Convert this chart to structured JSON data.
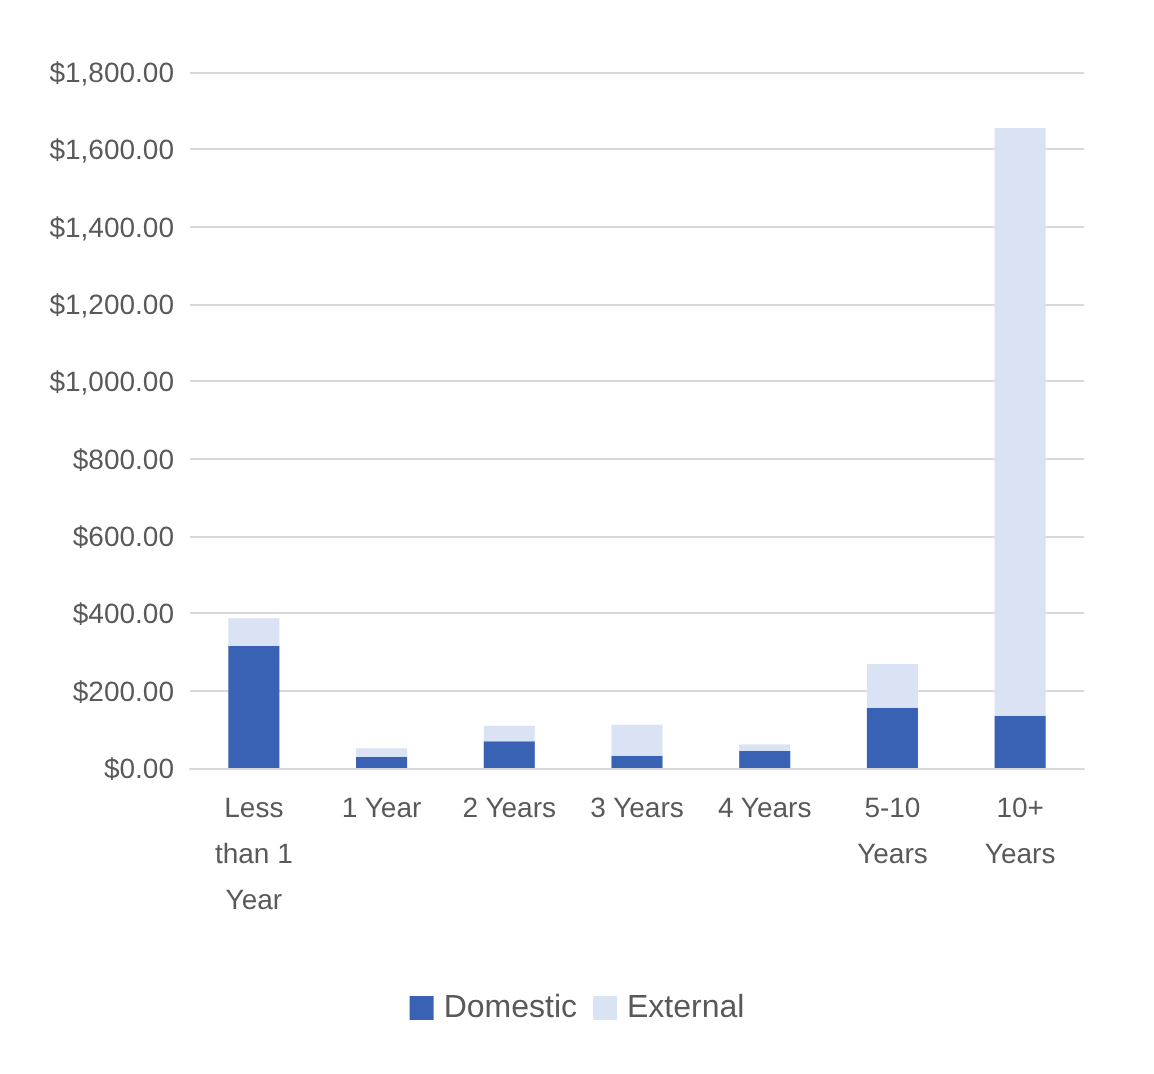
{
  "chart_data": {
    "type": "bar",
    "stacked": true,
    "categories": [
      "Less than 1 Year",
      "1 Year",
      "2 Years",
      "3 Years",
      "4 Years",
      "5-10 Years",
      "10+ Years"
    ],
    "series": [
      {
        "name": "Domestic",
        "color": "#3a62b4",
        "values": [
          316,
          29,
          69,
          32,
          44,
          156,
          135
        ]
      },
      {
        "name": "External",
        "color": "#dae3f3",
        "values": [
          71,
          22,
          40,
          80,
          17,
          113,
          1520
        ]
      }
    ],
    "ylim": [
      0,
      1800
    ],
    "yticks": [
      {
        "value": 0,
        "label": "$0.00"
      },
      {
        "value": 200,
        "label": "$200.00"
      },
      {
        "value": 400,
        "label": "$400.00"
      },
      {
        "value": 600,
        "label": "$600.00"
      },
      {
        "value": 800,
        "label": "$800.00"
      },
      {
        "value": 1000,
        "label": "$1,000.00"
      },
      {
        "value": 1200,
        "label": "$1,200.00"
      },
      {
        "value": 1400,
        "label": "$1,400.00"
      },
      {
        "value": 1600,
        "label": "$1,600.00"
      },
      {
        "value": 1800,
        "label": "$1,800.00"
      }
    ],
    "grid": true,
    "legend": "bottom"
  }
}
